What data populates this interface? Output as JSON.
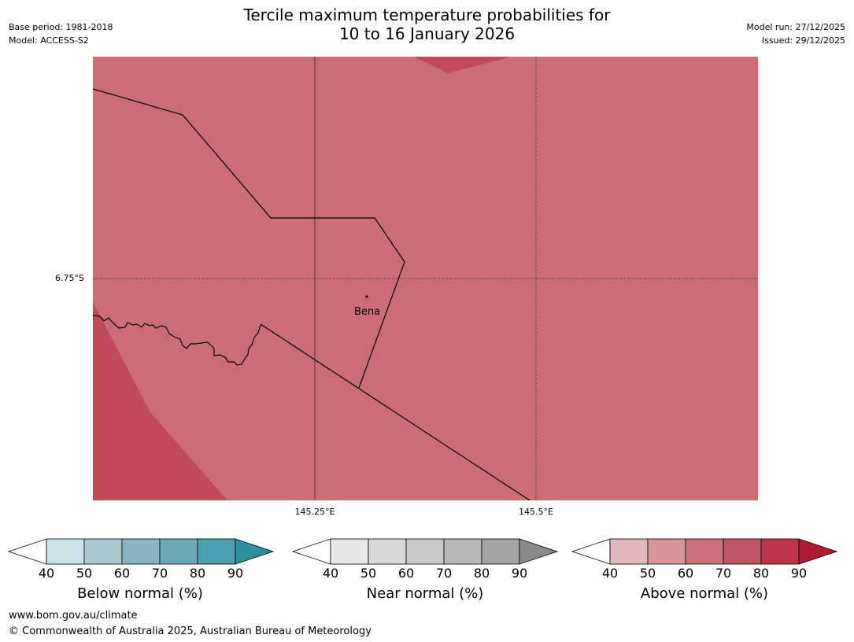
{
  "header": {
    "title_line1": "Tercile maximum temperature probabilities for",
    "title_line2": "10 to 16 January 2026",
    "base_period": "Base period: 1981-2018",
    "model": "Model: ACCESS-S2",
    "model_run": "Model run: 27/12/2025",
    "issued": "Issued: 29/12/2025"
  },
  "map": {
    "place_label": "Bena",
    "lat_label": "6.75°S",
    "lon_labels": [
      "145.25°E",
      "145.5°E"
    ],
    "fill_main": "#cb6d75",
    "fill_dark": "#c04b58",
    "border_color": "#000000"
  },
  "colorbars": [
    {
      "title": "Below normal (%)",
      "ticks": [
        "40",
        "50",
        "60",
        "70",
        "80",
        "90"
      ],
      "colors": [
        "#ffffff",
        "#cce3e8",
        "#a9c8cd",
        "#89b6c2",
        "#6ba9b8",
        "#4aa0ae",
        "#2e8e9c"
      ]
    },
    {
      "title": "Near normal (%)",
      "ticks": [
        "40",
        "50",
        "60",
        "70",
        "80",
        "90"
      ],
      "colors": [
        "#ffffff",
        "#e8e8e8",
        "#dadada",
        "#cacaca",
        "#b7b7b7",
        "#a3a3a3",
        "#8a8a8a"
      ]
    },
    {
      "title": "Above normal (%)",
      "ticks": [
        "40",
        "50",
        "60",
        "70",
        "80",
        "90"
      ],
      "colors": [
        "#ffffff",
        "#e3b8bd",
        "#d9959d",
        "#cc717a",
        "#c25563",
        "#bc334a",
        "#ae1c34"
      ]
    }
  ],
  "footer": {
    "url": "www.bom.gov.au/climate",
    "copyright": "© Commonwealth of Australia 2025, Australian Bureau of Meteorology"
  }
}
